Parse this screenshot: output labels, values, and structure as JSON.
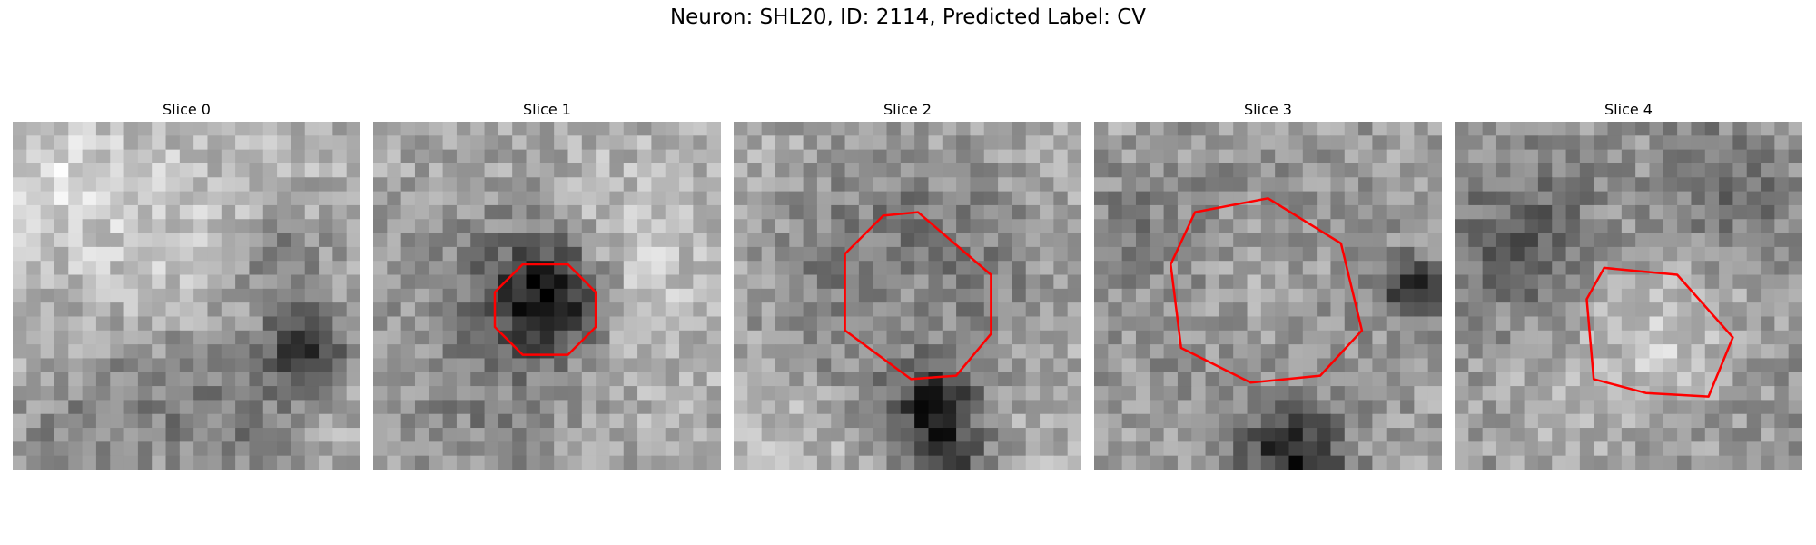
{
  "figure": {
    "title": "Neuron: SHL20, ID: 2114, Predicted Label: CV",
    "contour_color": "#ff0000"
  },
  "panels": [
    {
      "title": "Slice 0",
      "seed": 11,
      "base": 175,
      "has_contour": false,
      "blobs": [
        [
          0.85,
          0.65,
          0.09,
          -120
        ],
        [
          0.45,
          0.78,
          0.18,
          -45
        ],
        [
          0.15,
          0.9,
          0.15,
          -35
        ],
        [
          0.78,
          0.4,
          0.1,
          -60
        ],
        [
          0.4,
          0.35,
          0.25,
          25
        ],
        [
          0.12,
          0.15,
          0.12,
          35
        ],
        [
          0.7,
          0.92,
          0.12,
          -40
        ]
      ]
    },
    {
      "title": "Slice 1",
      "seed": 23,
      "base": 170,
      "has_contour": true,
      "blobs": [
        [
          0.51,
          0.51,
          0.12,
          -150
        ],
        [
          0.3,
          0.4,
          0.2,
          -25
        ],
        [
          0.3,
          0.85,
          0.2,
          -35
        ],
        [
          0.72,
          0.55,
          0.15,
          30
        ],
        [
          0.75,
          0.3,
          0.15,
          25
        ]
      ],
      "contour": [
        [
          0.43,
          0.41
        ],
        [
          0.56,
          0.41
        ],
        [
          0.64,
          0.49
        ],
        [
          0.64,
          0.59
        ],
        [
          0.56,
          0.67
        ],
        [
          0.43,
          0.67
        ],
        [
          0.35,
          0.59
        ],
        [
          0.35,
          0.49
        ]
      ]
    },
    {
      "title": "Slice 2",
      "seed": 37,
      "base": 170,
      "has_contour": true,
      "blobs": [
        [
          0.5,
          0.5,
          0.23,
          -110
        ],
        [
          0.5,
          0.52,
          0.15,
          80
        ],
        [
          0.58,
          0.82,
          0.08,
          -110
        ],
        [
          0.62,
          1.0,
          0.09,
          -90
        ],
        [
          0.2,
          0.88,
          0.14,
          25
        ],
        [
          0.85,
          0.75,
          0.14,
          15
        ]
      ],
      "contour": [
        [
          0.43,
          0.27
        ],
        [
          0.53,
          0.26
        ],
        [
          0.74,
          0.44
        ],
        [
          0.74,
          0.61
        ],
        [
          0.64,
          0.73
        ],
        [
          0.51,
          0.74
        ],
        [
          0.32,
          0.6
        ],
        [
          0.32,
          0.38
        ]
      ]
    },
    {
      "title": "Slice 3",
      "seed": 41,
      "base": 165,
      "has_contour": true,
      "blobs": [
        [
          0.5,
          0.5,
          0.27,
          -85
        ],
        [
          0.5,
          0.5,
          0.2,
          85
        ],
        [
          0.57,
          0.97,
          0.1,
          -120
        ],
        [
          0.92,
          0.48,
          0.06,
          -110
        ],
        [
          0.1,
          0.3,
          0.12,
          -25
        ]
      ],
      "contour": [
        [
          0.29,
          0.26
        ],
        [
          0.5,
          0.22
        ],
        [
          0.71,
          0.35
        ],
        [
          0.77,
          0.6
        ],
        [
          0.65,
          0.73
        ],
        [
          0.45,
          0.75
        ],
        [
          0.25,
          0.65
        ],
        [
          0.22,
          0.41
        ]
      ]
    },
    {
      "title": "Slice 4",
      "seed": 59,
      "base": 150,
      "has_contour": true,
      "blobs": [
        [
          0.6,
          0.6,
          0.16,
          50
        ],
        [
          0.2,
          0.35,
          0.15,
          -55
        ],
        [
          0.78,
          0.2,
          0.12,
          -45
        ],
        [
          0.3,
          0.85,
          0.15,
          25
        ]
      ],
      "contour": [
        [
          0.43,
          0.42
        ],
        [
          0.64,
          0.44
        ],
        [
          0.8,
          0.62
        ],
        [
          0.73,
          0.79
        ],
        [
          0.55,
          0.78
        ],
        [
          0.4,
          0.74
        ],
        [
          0.38,
          0.51
        ]
      ]
    }
  ]
}
